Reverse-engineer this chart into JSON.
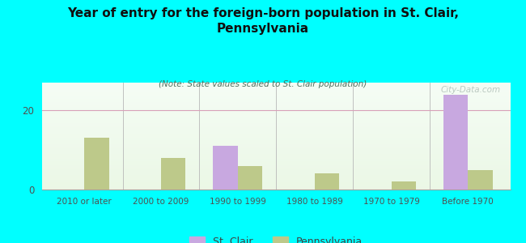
{
  "title": "Year of entry for the foreign-born population in St. Clair,\nPennsylvania",
  "subtitle": "(Note: State values scaled to St. Clair population)",
  "categories": [
    "2010 or later",
    "2000 to 2009",
    "1990 to 1999",
    "1980 to 1989",
    "1970 to 1979",
    "Before 1970"
  ],
  "stclair_values": [
    0,
    0,
    11,
    0,
    0,
    24
  ],
  "pennsylvania_values": [
    13,
    8,
    6,
    4,
    2,
    5
  ],
  "stclair_color": "#c8a8e0",
  "pennsylvania_color": "#bdc98a",
  "background_color": "#00ffff",
  "title_color": "#101010",
  "subtitle_color": "#507060",
  "watermark": "City-Data.com",
  "ylim": [
    0,
    27
  ],
  "yticks": [
    0,
    20
  ],
  "bar_width": 0.32
}
